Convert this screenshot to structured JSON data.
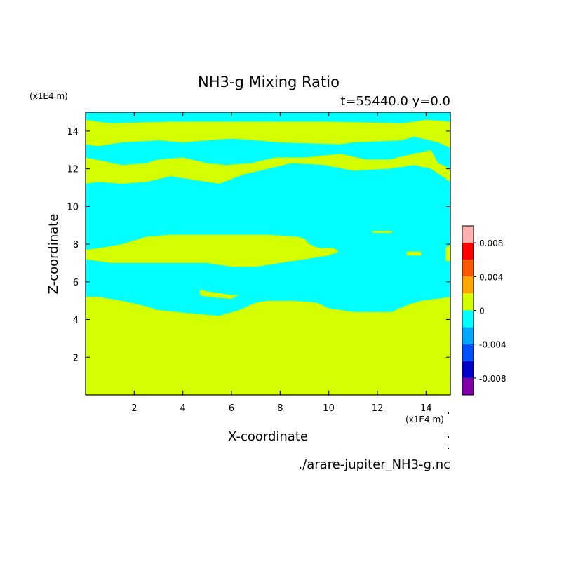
{
  "chart_data": {
    "type": "heatmap",
    "title": "NH3-g Mixing Ratio",
    "subtitle": "t=55440.0 y=0.0",
    "xlabel": "X-coordinate",
    "ylabel": "Z-coordinate",
    "x_unit": "(x1E4 m)",
    "y_unit": "(x1E4 m)",
    "xlim": [
      0,
      15
    ],
    "ylim": [
      0,
      15
    ],
    "x_ticks": [
      2,
      4,
      6,
      8,
      10,
      12,
      14
    ],
    "y_ticks": [
      2,
      4,
      6,
      8,
      10,
      12,
      14
    ],
    "filename": "./arare-jupiter_NH3-g.nc",
    "colorbar": {
      "tick_values": [
        0.008,
        0.004,
        0,
        -0.004,
        -0.008
      ],
      "tick_labels": [
        "0.008",
        "0.004",
        "0",
        "-0.004",
        "-0.008"
      ],
      "levels": [
        {
          "range": [
            0.008,
            0.01
          ],
          "color": "#ffb0b0"
        },
        {
          "range": [
            0.006,
            0.008
          ],
          "color": "#ff0000"
        },
        {
          "range": [
            0.004,
            0.006
          ],
          "color": "#ff5a00"
        },
        {
          "range": [
            0.002,
            0.004
          ],
          "color": "#ffa500"
        },
        {
          "range": [
            0.0,
            0.002
          ],
          "color": "#d4ff00"
        },
        {
          "range": [
            -0.002,
            0.0
          ],
          "color": "#00ffff"
        },
        {
          "range": [
            -0.004,
            -0.002
          ],
          "color": "#00a8ff"
        },
        {
          "range": [
            -0.006,
            -0.004
          ],
          "color": "#0050ff"
        },
        {
          "range": [
            -0.008,
            -0.006
          ],
          "color": "#0000cc"
        },
        {
          "range": [
            -0.01,
            -0.008
          ],
          "color": "#8000a8"
        }
      ]
    },
    "field": {
      "background_level_color": "#00ffff",
      "region_color": "#d4ff00",
      "regions": [
        [
          [
            0,
            0
          ],
          [
            15,
            0
          ],
          [
            15,
            5.2
          ],
          [
            14.4,
            5.1
          ],
          [
            13.8,
            5.0
          ],
          [
            13.3,
            4.8
          ],
          [
            12.9,
            4.6
          ],
          [
            12.6,
            4.4
          ],
          [
            12.0,
            4.4
          ],
          [
            11.0,
            4.4
          ],
          [
            10.0,
            4.6
          ],
          [
            9.5,
            4.9
          ],
          [
            8.5,
            5.0
          ],
          [
            7.5,
            5.0
          ],
          [
            7.0,
            4.9
          ],
          [
            6.3,
            4.5
          ],
          [
            5.5,
            4.2
          ],
          [
            4.5,
            4.3
          ],
          [
            3.8,
            4.4
          ],
          [
            3.0,
            4.5
          ],
          [
            2.5,
            4.7
          ],
          [
            1.5,
            5.0
          ],
          [
            0.5,
            5.2
          ],
          [
            0,
            5.2
          ]
        ],
        [
          [
            4.7,
            5.6
          ],
          [
            5.0,
            5.5
          ],
          [
            6.0,
            5.3
          ],
          [
            6.3,
            5.3
          ],
          [
            6.0,
            5.1
          ],
          [
            5.0,
            5.2
          ],
          [
            4.7,
            5.3
          ]
        ],
        [
          [
            0,
            7.2
          ],
          [
            0,
            7.7
          ],
          [
            0.6,
            7.8
          ],
          [
            1.5,
            8.0
          ],
          [
            2.5,
            8.4
          ],
          [
            3.5,
            8.5
          ],
          [
            5.0,
            8.5
          ],
          [
            7.5,
            8.5
          ],
          [
            8.7,
            8.4
          ],
          [
            9.0,
            8.3
          ],
          [
            9.2,
            8.0
          ],
          [
            9.6,
            7.8
          ],
          [
            10.2,
            7.8
          ],
          [
            10.4,
            7.6
          ],
          [
            10.0,
            7.4
          ],
          [
            9.0,
            7.2
          ],
          [
            8.0,
            7.0
          ],
          [
            7.0,
            6.8
          ],
          [
            6.0,
            6.8
          ],
          [
            5.0,
            7.0
          ],
          [
            3.0,
            7.0
          ],
          [
            1.0,
            7.0
          ]
        ],
        [
          [
            11.8,
            8.7
          ],
          [
            12.6,
            8.7
          ],
          [
            12.6,
            8.6
          ],
          [
            11.8,
            8.6
          ]
        ],
        [
          [
            13.2,
            7.6
          ],
          [
            13.8,
            7.6
          ],
          [
            13.8,
            7.4
          ],
          [
            13.2,
            7.4
          ]
        ],
        [
          [
            14.8,
            7.1
          ],
          [
            15,
            7.1
          ],
          [
            15,
            8.0
          ],
          [
            14.8,
            7.8
          ]
        ],
        [
          [
            0,
            11.2
          ],
          [
            0,
            12.6
          ],
          [
            1.5,
            12.2
          ],
          [
            2.5,
            12.3
          ],
          [
            3.0,
            12.5
          ],
          [
            4.0,
            12.6
          ],
          [
            5.0,
            12.3
          ],
          [
            5.8,
            12.2
          ],
          [
            6.8,
            12.3
          ],
          [
            7.8,
            12.6
          ],
          [
            9.0,
            12.6
          ],
          [
            10.5,
            12.8
          ],
          [
            11.5,
            12.5
          ],
          [
            12.5,
            12.5
          ],
          [
            13.5,
            12.8
          ],
          [
            14.2,
            13.0
          ],
          [
            14.5,
            12.3
          ],
          [
            15,
            12.0
          ],
          [
            15,
            11.3
          ],
          [
            14.2,
            12.0
          ],
          [
            13.5,
            12.2
          ],
          [
            12.5,
            12.0
          ],
          [
            11.0,
            11.9
          ],
          [
            9.8,
            12.2
          ],
          [
            8.5,
            12.3
          ],
          [
            7.5,
            12.0
          ],
          [
            6.5,
            11.7
          ],
          [
            5.5,
            11.2
          ],
          [
            4.5,
            11.4
          ],
          [
            3.5,
            11.6
          ],
          [
            2.5,
            11.3
          ],
          [
            1.5,
            11.2
          ],
          [
            0.5,
            11.3
          ]
        ],
        [
          [
            0,
            13.3
          ],
          [
            0,
            14.6
          ],
          [
            1.0,
            14.4
          ],
          [
            3.5,
            14.5
          ],
          [
            7.0,
            14.5
          ],
          [
            10.0,
            14.5
          ],
          [
            13.0,
            14.4
          ],
          [
            14.0,
            14.6
          ],
          [
            15,
            14.5
          ],
          [
            15,
            13.1
          ],
          [
            14.5,
            13.4
          ],
          [
            13.5,
            13.7
          ],
          [
            13.0,
            13.5
          ],
          [
            11.0,
            13.4
          ],
          [
            10.5,
            13.3
          ],
          [
            8.0,
            13.4
          ],
          [
            6.0,
            13.6
          ],
          [
            4.0,
            13.4
          ],
          [
            3.0,
            13.5
          ],
          [
            1.5,
            13.4
          ],
          [
            0.5,
            13.2
          ]
        ]
      ]
    }
  }
}
